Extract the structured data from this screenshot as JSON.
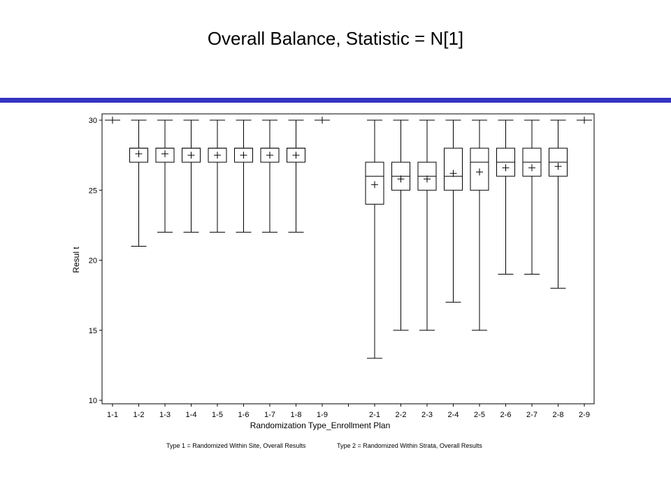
{
  "slide": {
    "title": "Overall Balance, Statistic = N[1]",
    "rule_color": "#3434c0"
  },
  "chart_data": {
    "type": "boxplot",
    "xlabel": "Randomization Type_Enrollment Plan",
    "ylabel": "Resul t",
    "ylim": [
      10,
      30
    ],
    "yticks": [
      10,
      15,
      20,
      25,
      30
    ],
    "grid": false,
    "categories": [
      "1-1",
      "1-2",
      "1-3",
      "1-4",
      "1-5",
      "1-6",
      "1-7",
      "1-8",
      "1-9",
      "",
      "2-1",
      "2-2",
      "2-3",
      "2-4",
      "2-5",
      "2-6",
      "2-7",
      "2-8",
      "2-9"
    ],
    "boxes": [
      {
        "category": "1-1",
        "min": 30,
        "q1": 30,
        "median": 30,
        "q3": 30,
        "max": 30,
        "mean": 30
      },
      {
        "category": "1-2",
        "min": 21,
        "q1": 27,
        "median": 28,
        "q3": 28,
        "max": 30,
        "mean": 27.6
      },
      {
        "category": "1-3",
        "min": 22,
        "q1": 27,
        "median": 28,
        "q3": 28,
        "max": 30,
        "mean": 27.6
      },
      {
        "category": "1-4",
        "min": 22,
        "q1": 27,
        "median": 28,
        "q3": 28,
        "max": 30,
        "mean": 27.5
      },
      {
        "category": "1-5",
        "min": 22,
        "q1": 27,
        "median": 28,
        "q3": 28,
        "max": 30,
        "mean": 27.5
      },
      {
        "category": "1-6",
        "min": 22,
        "q1": 27,
        "median": 28,
        "q3": 28,
        "max": 30,
        "mean": 27.5
      },
      {
        "category": "1-7",
        "min": 22,
        "q1": 27,
        "median": 28,
        "q3": 28,
        "max": 30,
        "mean": 27.5
      },
      {
        "category": "1-8",
        "min": 22,
        "q1": 27,
        "median": 28,
        "q3": 28,
        "max": 30,
        "mean": 27.5
      },
      {
        "category": "1-9",
        "min": 30,
        "q1": 30,
        "median": 30,
        "q3": 30,
        "max": 30,
        "mean": 30
      },
      {
        "category": "2-1",
        "min": 13,
        "q1": 24,
        "median": 26,
        "q3": 27,
        "max": 30,
        "mean": 25.4
      },
      {
        "category": "2-2",
        "min": 15,
        "q1": 25,
        "median": 26,
        "q3": 27,
        "max": 30,
        "mean": 25.8
      },
      {
        "category": "2-3",
        "min": 15,
        "q1": 25,
        "median": 26,
        "q3": 27,
        "max": 30,
        "mean": 25.8
      },
      {
        "category": "2-4",
        "min": 17,
        "q1": 25,
        "median": 26,
        "q3": 28,
        "max": 30,
        "mean": 26.2
      },
      {
        "category": "2-5",
        "min": 15,
        "q1": 25,
        "median": 27,
        "q3": 28,
        "max": 30,
        "mean": 26.3
      },
      {
        "category": "2-6",
        "min": 19,
        "q1": 26,
        "median": 27,
        "q3": 28,
        "max": 30,
        "mean": 26.6
      },
      {
        "category": "2-7",
        "min": 19,
        "q1": 26,
        "median": 27,
        "q3": 28,
        "max": 30,
        "mean": 26.6
      },
      {
        "category": "2-8",
        "min": 18,
        "q1": 26,
        "median": 27,
        "q3": 28,
        "max": 30,
        "mean": 26.7
      },
      {
        "category": "2-9",
        "min": 30,
        "q1": 30,
        "median": 30,
        "q3": 30,
        "max": 30,
        "mean": 30
      }
    ],
    "footnotes": [
      "Type 1 = Randomized Within Site, Overall Results",
      "Type 2 = Randomized Within Strata, Overall Results"
    ]
  }
}
